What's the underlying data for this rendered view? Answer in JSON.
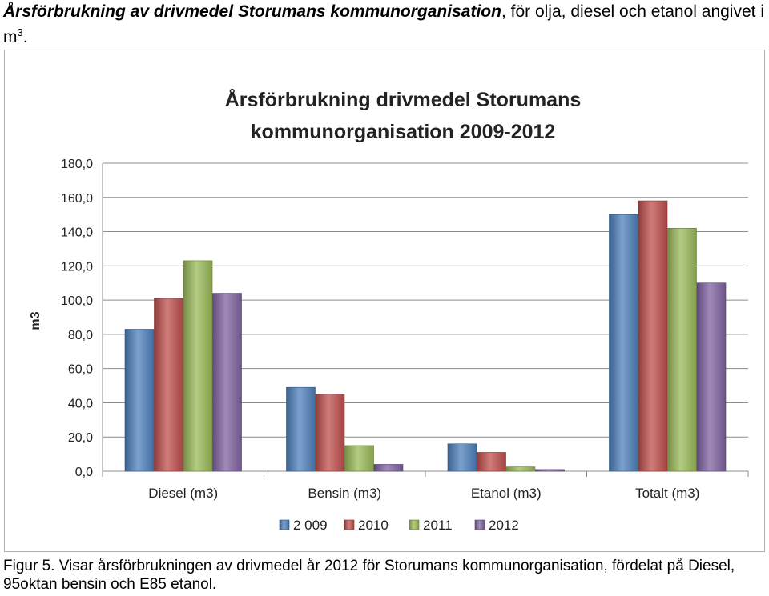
{
  "document": {
    "heading_bold": "Årsförbrukning av drivmedel Storumans kommunorganisation",
    "heading_rest": ", för olja, diesel och etanol angivet i m",
    "heading_sup": "3",
    "heading_end": ".",
    "caption": "Figur 5. Visar årsförbrukningen av drivmedel år 2012 för Storumans kommunorganisation, fördelat på Diesel, 95oktan bensin och E85 etanol."
  },
  "chart_data": {
    "type": "bar",
    "title_line1": "Årsförbrukning drivmedel Storumans",
    "title_line2": "kommunorganisation 2009-2012",
    "xlabel": "",
    "ylabel": "m3",
    "ylim": [
      0,
      180
    ],
    "yticks": [
      "0,0",
      "20,0",
      "40,0",
      "60,0",
      "80,0",
      "100,0",
      "120,0",
      "140,0",
      "160,0",
      "180,0"
    ],
    "categories": [
      "Diesel (m3)",
      "Bensin (m3)",
      "Etanol (m3)",
      "Totalt (m3)"
    ],
    "series": [
      {
        "name": "2 009",
        "color": "#4f81bd",
        "values": [
          83,
          49,
          16,
          150
        ]
      },
      {
        "name": "2010",
        "color": "#c0504d",
        "values": [
          101,
          45,
          11,
          158
        ]
      },
      {
        "name": "2011",
        "color": "#9bbb59",
        "values": [
          123,
          15,
          2.5,
          142
        ]
      },
      {
        "name": "2012",
        "color": "#8064a2",
        "values": [
          104,
          4,
          1,
          110
        ]
      }
    ],
    "grid": true,
    "legend_position": "bottom"
  }
}
